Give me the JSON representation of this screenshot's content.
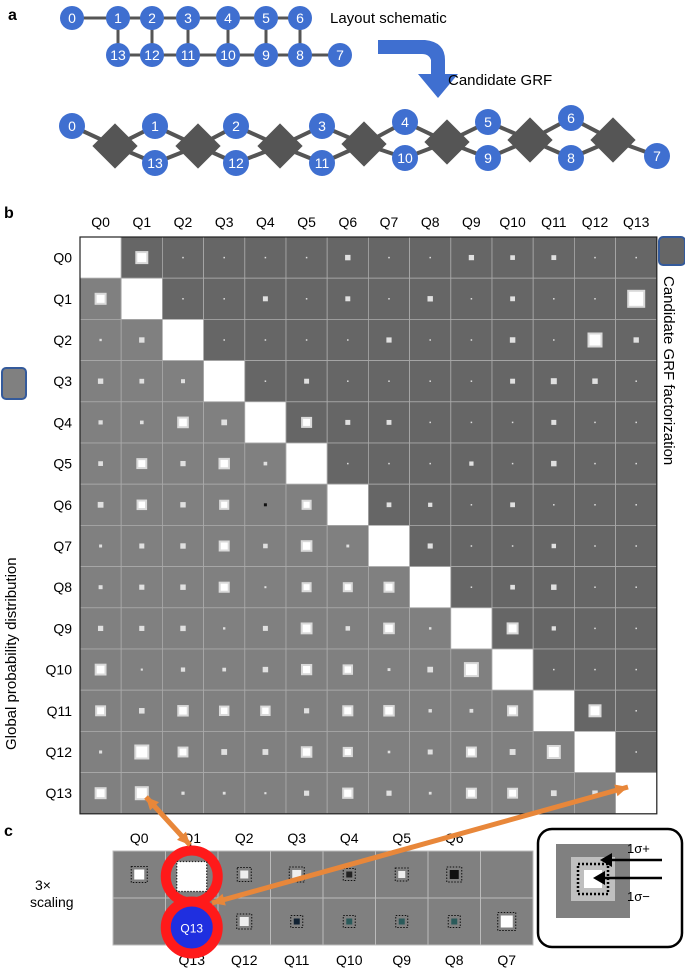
{
  "panels": {
    "a": "a",
    "b": "b",
    "c": "c"
  },
  "panel_a": {
    "schematic_label": "Layout schematic",
    "grf_label": "Candidate GRF",
    "top_row": [
      "0",
      "1",
      "2",
      "3",
      "4",
      "5",
      "6"
    ],
    "bottom_row": [
      "13",
      "12",
      "11",
      "10",
      "9",
      "8",
      "7"
    ],
    "grf_nodes": [
      "0",
      "1",
      "13",
      "2",
      "12",
      "3",
      "11",
      "4",
      "10",
      "5",
      "9",
      "6",
      "8",
      "7"
    ]
  },
  "panel_b": {
    "qubits": [
      "Q0",
      "Q1",
      "Q2",
      "Q3",
      "Q4",
      "Q5",
      "Q6",
      "Q7",
      "Q8",
      "Q9",
      "Q10",
      "Q11",
      "Q12",
      "Q13"
    ],
    "left_axis_label": "Global probability distribution",
    "right_axis_label": "Candidate GRF factorization"
  },
  "panel_c": {
    "top_labels": [
      "Q0",
      "Q1",
      "Q2",
      "Q3",
      "Q4",
      "Q5",
      "Q6"
    ],
    "bottom_labels": [
      "Q13",
      "Q12",
      "Q11",
      "Q10",
      "Q9",
      "Q8",
      "Q7"
    ],
    "scaling_label": [
      "3×",
      "scaling"
    ],
    "highlight_label": "Q13",
    "legend_plus": "1σ+",
    "legend_minus": "1σ−"
  },
  "colors": {
    "node": "#3f6fd0",
    "edge": "#555555",
    "upper_cell": "#666666",
    "lower_cell": "#808080",
    "arrow": "#e8873a",
    "ring": "#ff1a1a",
    "highlight": "#1f2fe0"
  }
}
